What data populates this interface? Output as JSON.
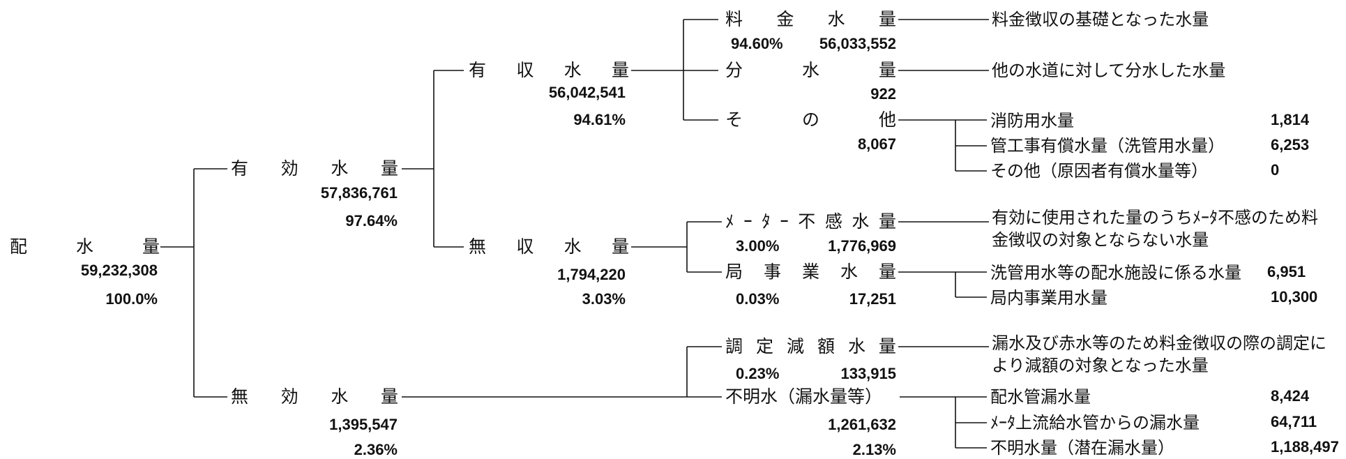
{
  "root": {
    "label": "配水量",
    "value": "59,232,308",
    "percent": "100.0%"
  },
  "effective": {
    "label": "有効水量",
    "value": "57,836,761",
    "percent": "97.64%"
  },
  "ineffective": {
    "label": "無効水量",
    "value": "1,395,547",
    "percent": "2.36%"
  },
  "revenue": {
    "label": "有収水量",
    "value": "56,042,541",
    "percent": "94.61%"
  },
  "nonrevenue": {
    "label": "無収水量",
    "value": "1,794,220",
    "percent": "3.03%"
  },
  "billed": {
    "label": "料金水量",
    "percent": "94.60%",
    "value": "56,033,552",
    "desc": "料金徴収の基礎となった水量"
  },
  "distributed": {
    "label": "分水量",
    "value": "922",
    "desc": "他の水道に対して分水した水量"
  },
  "revenue_other": {
    "label": "その他",
    "value": "8,067",
    "items": [
      {
        "label": "消防用水量",
        "value": "1,814"
      },
      {
        "label": "管工事有償水量（洗管用水量）",
        "value": "6,253"
      },
      {
        "label": "その他（原因者有償水量等）",
        "value": "0"
      }
    ]
  },
  "meter_insensitive": {
    "label": "ﾒｰﾀｰ不感水量",
    "percent": "3.00%",
    "value": "1,776,969",
    "desc": "有効に使用された量のうちﾒｰﾀ不感のため料金徴収の対象とならない水量"
  },
  "bureau_use": {
    "label": "局事業水量",
    "percent": "0.03%",
    "value": "17,251",
    "items": [
      {
        "label": "洗管用水等の配水施設に係る水量",
        "value": "6,951"
      },
      {
        "label": "局内事業用水量",
        "value": "10,300"
      }
    ]
  },
  "adjusted": {
    "label": "調定減額水量",
    "percent": "0.23%",
    "value": "133,915",
    "desc": "漏水及び赤水等のため料金徴収の際の調定により減額の対象となった水量"
  },
  "unknown": {
    "label": "不明水（漏水量等）",
    "value": "1,261,632",
    "percent": "2.13%",
    "items": [
      {
        "label": "配水管漏水量",
        "value": "8,424"
      },
      {
        "label": "ﾒｰﾀ上流給水管からの漏水量",
        "value": "64,711"
      },
      {
        "label": "不明水量（潜在漏水量）",
        "value": "1,188,497"
      }
    ]
  }
}
